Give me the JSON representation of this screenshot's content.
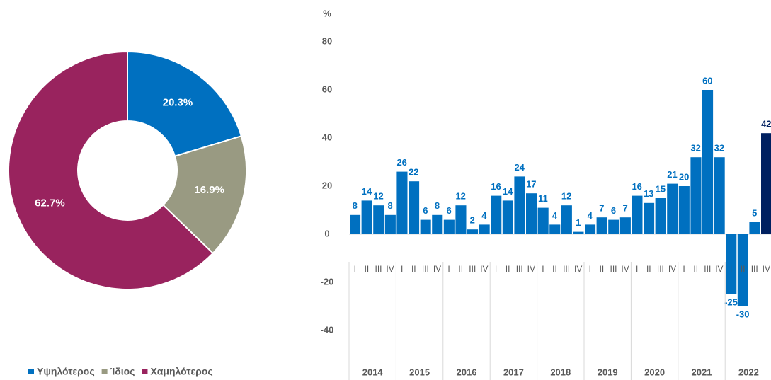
{
  "chart_data": [
    {
      "type": "donut",
      "categories": [
        "Υψηλότερος",
        "Ίδιος",
        "Χαμηλότερος"
      ],
      "values": [
        20.3,
        16.9,
        62.7
      ],
      "value_labels": [
        "20.3%",
        "16.9%",
        "62.7%"
      ],
      "colors": [
        "#0070c0",
        "#999a82",
        "#99235e"
      ],
      "legend": "bottom"
    },
    {
      "type": "bar",
      "ylabel": "%",
      "categories": [
        "I",
        "II",
        "III",
        "IV",
        "I",
        "II",
        "III",
        "IV",
        "I",
        "II",
        "III",
        "IV",
        "I",
        "II",
        "III",
        "IV",
        "I",
        "II",
        "III",
        "IV",
        "I",
        "II",
        "III",
        "IV",
        "I",
        "II",
        "III",
        "IV",
        "I",
        "II",
        "III",
        "IV",
        "I",
        "II",
        "III",
        "IV"
      ],
      "groups": [
        "2014",
        "2015",
        "2016",
        "2017",
        "2018",
        "2019",
        "2020",
        "2021",
        "2022"
      ],
      "values": [
        8,
        14,
        12,
        8,
        26,
        22,
        6,
        8,
        6,
        12,
        2,
        4,
        16,
        14,
        24,
        17,
        11,
        4,
        12,
        1,
        4,
        7,
        6,
        7,
        16,
        13,
        15,
        21,
        20,
        32,
        60,
        32,
        -25,
        -30,
        5,
        42
      ],
      "colors": [
        "#0070c0",
        "#0070c0",
        "#0070c0",
        "#0070c0",
        "#0070c0",
        "#0070c0",
        "#0070c0",
        "#0070c0",
        "#0070c0",
        "#0070c0",
        "#0070c0",
        "#0070c0",
        "#0070c0",
        "#0070c0",
        "#0070c0",
        "#0070c0",
        "#0070c0",
        "#0070c0",
        "#0070c0",
        "#0070c0",
        "#0070c0",
        "#0070c0",
        "#0070c0",
        "#0070c0",
        "#0070c0",
        "#0070c0",
        "#0070c0",
        "#0070c0",
        "#0070c0",
        "#0070c0",
        "#0070c0",
        "#0070c0",
        "#0070c0",
        "#0070c0",
        "#0070c0",
        "#002060"
      ],
      "ylim": [
        -40,
        80
      ],
      "yticks": [
        -40,
        -20,
        0,
        20,
        40,
        60,
        80
      ],
      "grid": false
    }
  ]
}
